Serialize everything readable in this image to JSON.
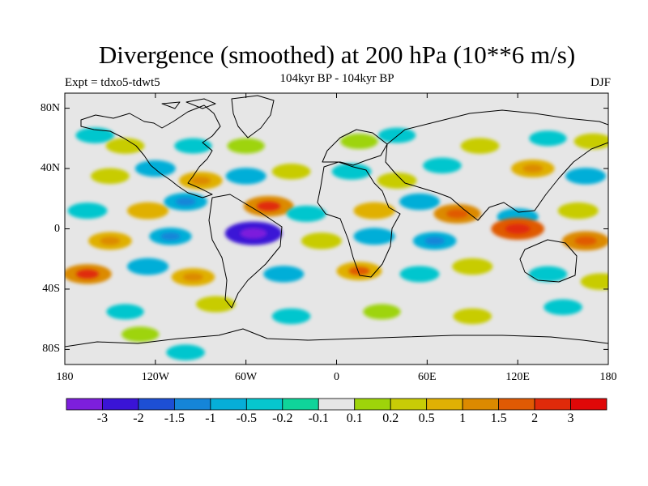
{
  "figure": {
    "title": "Divergence (smoothed) at 200 hPa (10**6 m/s)",
    "subtitle": "104kyr BP - 104kyr BP",
    "experiment": "Expt = tdxo5-tdwt5",
    "season": "DJF"
  },
  "map": {
    "projection": "equirectangular",
    "lon_range": [
      -180,
      180
    ],
    "lat_range": [
      -90,
      90
    ],
    "background_color": "#e6e6e6",
    "coastline_color": "#000000",
    "x_ticks": [
      "180",
      "120W",
      "60W",
      "0",
      "60E",
      "120E",
      "180"
    ],
    "y_ticks": [
      "80N",
      "40N",
      "0",
      "40S",
      "80S"
    ]
  },
  "colorbar": {
    "colors": [
      "#7d1fdc",
      "#3a14d6",
      "#1d4fd4",
      "#1585d8",
      "#06aed8",
      "#06c6ce",
      "#0fd49a",
      "#e6e6e6",
      "#9ed40a",
      "#c8cc06",
      "#e0b004",
      "#dc8a00",
      "#e05a04",
      "#e02a0a",
      "#e00808"
    ],
    "labels": [
      "-3",
      "-2",
      "-1.5",
      "-1",
      "-0.5",
      "-0.2",
      "-0.1",
      "0.1",
      "0.2",
      "0.5",
      "1",
      "1.5",
      "2",
      "3"
    ]
  },
  "field_regions": [
    {
      "lon": -160,
      "lat": 62,
      "value": -0.3
    },
    {
      "lon": -140,
      "lat": 55,
      "value": 0.3
    },
    {
      "lon": -95,
      "lat": 55,
      "value": -0.2
    },
    {
      "lon": -60,
      "lat": 55,
      "value": 0.2
    },
    {
      "lon": 15,
      "lat": 58,
      "value": 0.2
    },
    {
      "lon": 40,
      "lat": 62,
      "value": -0.2
    },
    {
      "lon": 95,
      "lat": 55,
      "value": 0.3
    },
    {
      "lon": 140,
      "lat": 60,
      "value": -0.2
    },
    {
      "lon": 170,
      "lat": 58,
      "value": 0.3
    },
    {
      "lon": -150,
      "lat": 35,
      "value": 0.3
    },
    {
      "lon": -120,
      "lat": 40,
      "value": -0.5
    },
    {
      "lon": -90,
      "lat": 32,
      "value": 0.8
    },
    {
      "lon": -60,
      "lat": 35,
      "value": -0.5
    },
    {
      "lon": -30,
      "lat": 38,
      "value": 0.3
    },
    {
      "lon": 10,
      "lat": 38,
      "value": -0.4
    },
    {
      "lon": 40,
      "lat": 32,
      "value": 0.4
    },
    {
      "lon": 70,
      "lat": 42,
      "value": -0.3
    },
    {
      "lon": 130,
      "lat": 40,
      "value": 0.8
    },
    {
      "lon": 165,
      "lat": 35,
      "value": -0.5
    },
    {
      "lon": -165,
      "lat": 12,
      "value": -0.4
    },
    {
      "lon": -125,
      "lat": 12,
      "value": 0.6
    },
    {
      "lon": -100,
      "lat": 18,
      "value": -0.8
    },
    {
      "lon": -45,
      "lat": 15,
      "value": 1.5
    },
    {
      "lon": -20,
      "lat": 10,
      "value": -0.4
    },
    {
      "lon": 25,
      "lat": 12,
      "value": 0.6
    },
    {
      "lon": 55,
      "lat": 18,
      "value": -0.5
    },
    {
      "lon": 80,
      "lat": 10,
      "value": 1.2
    },
    {
      "lon": 120,
      "lat": 8,
      "value": -0.6
    },
    {
      "lon": 160,
      "lat": 12,
      "value": 0.5
    },
    {
      "lon": -150,
      "lat": -8,
      "value": 0.8
    },
    {
      "lon": -110,
      "lat": -5,
      "value": -0.7
    },
    {
      "lon": -55,
      "lat": -3,
      "value": -2.2
    },
    {
      "lon": -10,
      "lat": -8,
      "value": 0.5
    },
    {
      "lon": 25,
      "lat": -5,
      "value": -0.6
    },
    {
      "lon": 65,
      "lat": -8,
      "value": -0.8
    },
    {
      "lon": 120,
      "lat": 0,
      "value": 1.8
    },
    {
      "lon": 165,
      "lat": -8,
      "value": 1.2
    },
    {
      "lon": -165,
      "lat": -30,
      "value": 1.3
    },
    {
      "lon": -125,
      "lat": -25,
      "value": -0.6
    },
    {
      "lon": -95,
      "lat": -32,
      "value": 0.8
    },
    {
      "lon": -35,
      "lat": -30,
      "value": -0.5
    },
    {
      "lon": 15,
      "lat": -28,
      "value": 1.0
    },
    {
      "lon": 55,
      "lat": -30,
      "value": -0.4
    },
    {
      "lon": 90,
      "lat": -25,
      "value": 0.5
    },
    {
      "lon": 140,
      "lat": -30,
      "value": -0.3
    },
    {
      "lon": 175,
      "lat": -35,
      "value": 0.5
    },
    {
      "lon": -140,
      "lat": -55,
      "value": -0.2
    },
    {
      "lon": -80,
      "lat": -50,
      "value": 0.4
    },
    {
      "lon": -30,
      "lat": -58,
      "value": -0.3
    },
    {
      "lon": 30,
      "lat": -55,
      "value": 0.2
    },
    {
      "lon": 90,
      "lat": -58,
      "value": 0.3
    },
    {
      "lon": 150,
      "lat": -52,
      "value": -0.3
    },
    {
      "lon": -130,
      "lat": -70,
      "value": 0.2
    },
    {
      "lon": -100,
      "lat": -82,
      "value": -0.3
    }
  ]
}
